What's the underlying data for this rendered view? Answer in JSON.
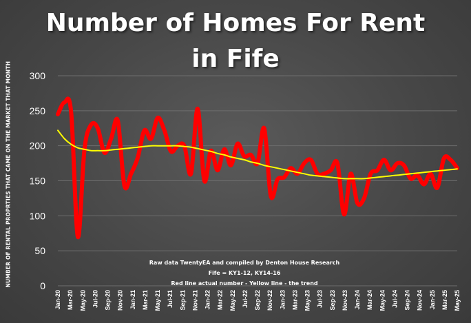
{
  "chart_data": {
    "type": "line",
    "title_line1": "Number of Homes For Rent",
    "title_line2": "in Fife",
    "ylabel": "NUMBER OF RENTAL PROPRTIES THAT CAME ON THE MARKET THAT MONTH",
    "ylim": [
      0,
      300
    ],
    "yticks": [
      "0",
      "50",
      "100",
      "150",
      "200",
      "250",
      "300"
    ],
    "grid": true,
    "tick_labels": [
      "Jan-20",
      "Mar-20",
      "May-20",
      "Jul-20",
      "Sep-20",
      "Nov-20",
      "Jan-21",
      "Mar-21",
      "May-21",
      "Jul-21",
      "Sep-21",
      "Nov-21",
      "Jan-22",
      "Mar-22",
      "May-22",
      "Jul-22",
      "Sep-22",
      "Nov-22",
      "Jan-23",
      "Mar-23",
      "May-23",
      "Jul-23",
      "Sep-23",
      "Nov-23",
      "Jan-24",
      "Mar-24",
      "May-24",
      "Jul-24",
      "Sep-24",
      "Nov-24",
      "Jan-25",
      "Mar-25",
      "May-25"
    ],
    "series": [
      {
        "color": "#ff0000",
        "values": [
          245,
          262,
          248,
          70,
          195,
          230,
          225,
          190,
          210,
          236,
          143,
          160,
          183,
          222,
          210,
          240,
          222,
          192,
          200,
          200,
          160,
          253,
          150,
          193,
          165,
          195,
          172,
          203,
          185,
          187,
          175,
          225,
          128,
          152,
          155,
          168,
          160,
          175,
          180,
          160,
          160,
          165,
          175,
          102,
          160,
          118,
          125,
          160,
          165,
          180,
          165,
          175,
          172,
          153,
          158,
          145,
          160,
          140,
          182,
          180,
          168
        ]
      },
      {
        "color": "#ffff00",
        "values": [
          222,
          210,
          202,
          197,
          195,
          193,
          193,
          193,
          194,
          195,
          196,
          197,
          198,
          199,
          200,
          200,
          200,
          200,
          200,
          199,
          198,
          196,
          194,
          192,
          189,
          187,
          184,
          182,
          180,
          177,
          175,
          172,
          170,
          168,
          166,
          164,
          162,
          160,
          158,
          157,
          156,
          155,
          154,
          153,
          153,
          153,
          153,
          154,
          155,
          156,
          157,
          158,
          159,
          160,
          161,
          162,
          163,
          164,
          165,
          166,
          167
        ]
      }
    ]
  },
  "notes": {
    "line1": "Raw data TwentyEA and compiled by Denton House Research",
    "line2": "Fife = KY1-12, KY14-16",
    "line3": "Red line actual number - Yellow line  - the trend"
  },
  "colors": {
    "gridline": "#6e6e6e",
    "text": "#ffffff"
  }
}
